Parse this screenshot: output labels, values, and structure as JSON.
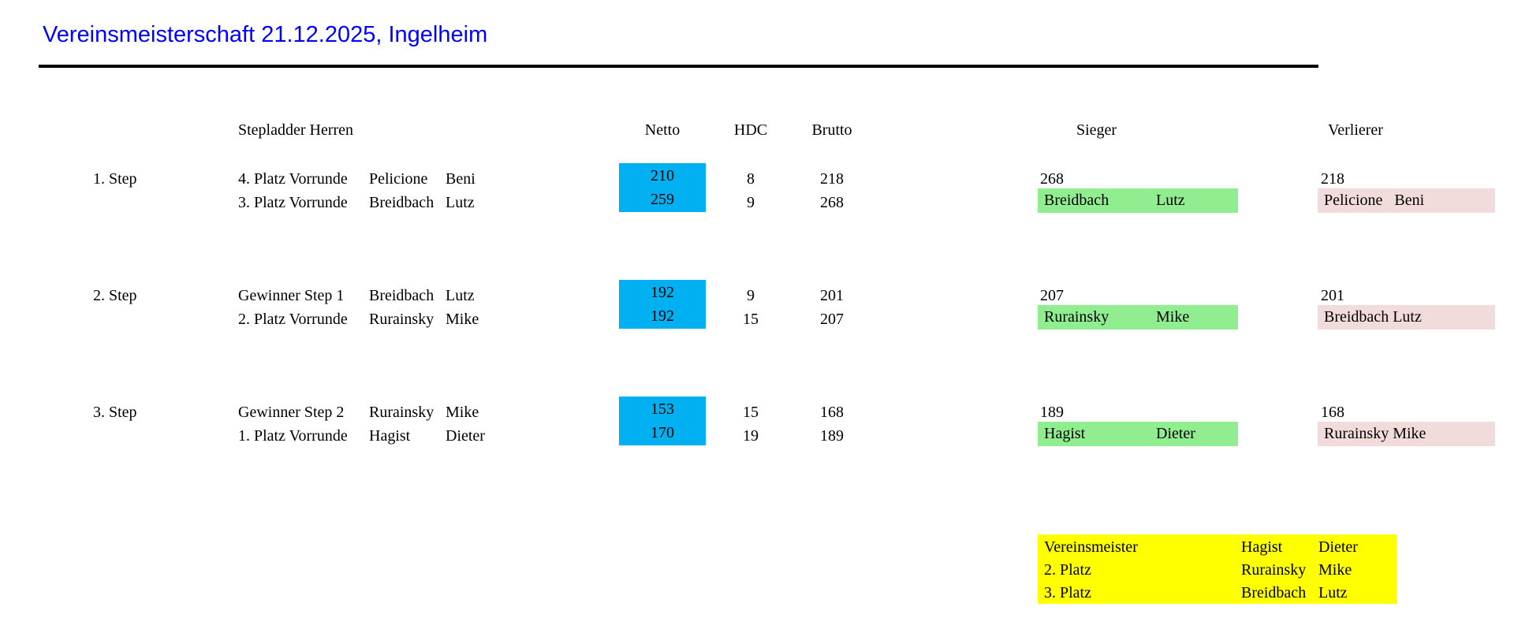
{
  "title": "Vereinsmeisterschaft 21.12.2025, Ingelheim",
  "colors": {
    "title_text": "#0000FF",
    "rule": "#000000",
    "netto_fill": "#00B0F0",
    "sieger_fill": "#90EE90",
    "verlierer_fill": "#F2DCDB",
    "final_fill": "#FFFF00"
  },
  "header": {
    "group": "Stepladder Herren",
    "netto": "Netto",
    "hdc": "HDC",
    "brutto": "Brutto",
    "sieger": "Sieger",
    "verlierer": "Verlierer"
  },
  "steps": [
    {
      "label": "1. Step",
      "rows": [
        {
          "desc": "4. Platz Vorrunde",
          "surname": "Pelicione",
          "firstname": "Beni",
          "netto": "210",
          "hdc": "8",
          "brutto": "218"
        },
        {
          "desc": "3. Platz Vorrunde",
          "surname": "Breidbach",
          "firstname": "Lutz",
          "netto": "259",
          "hdc": "9",
          "brutto": "268"
        }
      ],
      "sieger": {
        "score": "268",
        "surname": "Breidbach",
        "firstname": "Lutz"
      },
      "verlierer": {
        "score": "218",
        "name": "Pelicione   Beni"
      }
    },
    {
      "label": "2. Step",
      "rows": [
        {
          "desc": "Gewinner Step 1",
          "surname": "Breidbach",
          "firstname": "Lutz",
          "netto": "192",
          "hdc": "9",
          "brutto": "201"
        },
        {
          "desc": "2. Platz Vorrunde",
          "surname": "Rurainsky",
          "firstname": "Mike",
          "netto": "192",
          "hdc": "15",
          "brutto": "207"
        }
      ],
      "sieger": {
        "score": "207",
        "surname": "Rurainsky",
        "firstname": "Mike"
      },
      "verlierer": {
        "score": "201",
        "name": "Breidbach Lutz"
      }
    },
    {
      "label": "3. Step",
      "rows": [
        {
          "desc": "Gewinner Step 2",
          "surname": "Rurainsky",
          "firstname": "Mike",
          "netto": "153",
          "hdc": "15",
          "brutto": "168"
        },
        {
          "desc": "1. Platz Vorrunde",
          "surname": "Hagist",
          "firstname": "Dieter",
          "netto": "170",
          "hdc": "19",
          "brutto": "189"
        }
      ],
      "sieger": {
        "score": "189",
        "surname": "Hagist",
        "firstname": "Dieter"
      },
      "verlierer": {
        "score": "168",
        "name": "Rurainsky Mike"
      }
    }
  ],
  "final": {
    "rows": [
      {
        "label": "Vereinsmeister",
        "surname": "Hagist",
        "firstname": "Dieter"
      },
      {
        "label": "2. Platz",
        "surname": "Rurainsky",
        "firstname": "Mike"
      },
      {
        "label": "3. Platz",
        "surname": "Breidbach",
        "firstname": "Lutz"
      }
    ]
  }
}
